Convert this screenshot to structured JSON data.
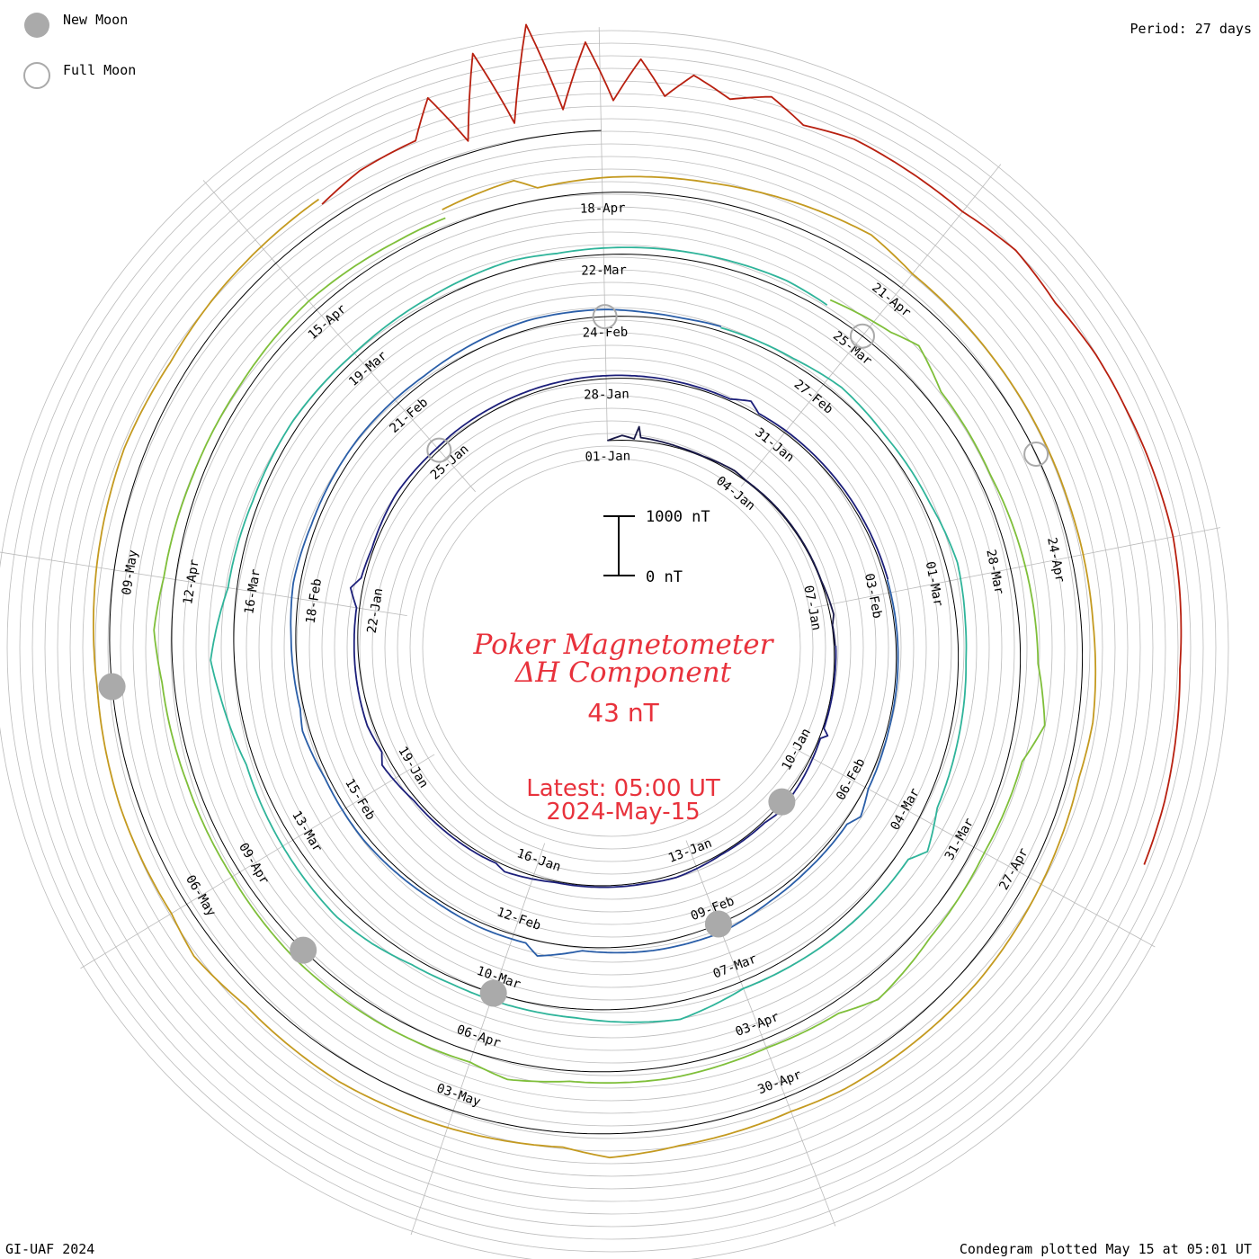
{
  "legend": {
    "new_moon_label": "New Moon",
    "full_moon_label": "Full Moon"
  },
  "period_label": "Period: 27 days",
  "footer_left": "GI-UAF 2024",
  "footer_right": "Condegram plotted May 15 at 05:01 UT",
  "colors": {
    "title": "#e8323c",
    "moon_new": "#aaaaaa",
    "moon_full_stroke": "#aaaaaa",
    "grid": "#bbbbbb",
    "baseline": "#000000"
  },
  "chart_data": {
    "type": "line",
    "title": "Poker Magnetometer",
    "subtitle": "ΔH Component",
    "current_value": "43 nT",
    "latest_label": "Latest: 05:00 UT",
    "latest_date": "2024-May-15",
    "scale_bar": {
      "top_label": "1000 nT",
      "bottom_label": "0 nT",
      "top_value": 1000,
      "bottom_value": 0
    },
    "period_days": 27,
    "start_date": "2024-01-01",
    "end_date": "2024-05-15",
    "date_labels": [
      "01-Jan",
      "04-Jan",
      "07-Jan",
      "10-Jan",
      "13-Jan",
      "16-Jan",
      "19-Jan",
      "22-Jan",
      "25-Jan",
      "28-Jan",
      "31-Jan",
      "03-Feb",
      "06-Feb",
      "09-Feb",
      "12-Feb",
      "15-Feb",
      "18-Feb",
      "21-Feb",
      "24-Feb",
      "27-Feb",
      "01-Mar",
      "04-Mar",
      "07-Mar",
      "10-Mar",
      "13-Mar",
      "16-Mar",
      "19-Mar",
      "22-Mar",
      "25-Mar",
      "28-Mar",
      "31-Mar",
      "03-Apr",
      "06-Apr",
      "09-Apr",
      "12-Apr",
      "15-Apr",
      "18-Apr",
      "21-Apr",
      "24-Apr",
      "27-Apr",
      "30-Apr",
      "03-May",
      "06-May",
      "09-May"
    ],
    "new_moons": [
      "2024-01-11",
      "2024-02-09",
      "2024-03-10",
      "2024-04-08",
      "2024-05-08"
    ],
    "full_moons": [
      "2024-01-25",
      "2024-02-24",
      "2024-03-25",
      "2024-04-23"
    ],
    "series": [
      {
        "color": "#1a1a4a",
        "points": [
          [
            0,
            0
          ],
          [
            0.3,
            80
          ],
          [
            0.55,
            30
          ],
          [
            0.62,
            240
          ],
          [
            0.68,
            60
          ],
          [
            1.5,
            20
          ],
          [
            2.0,
            10
          ],
          [
            2.7,
            40
          ],
          [
            3.0,
            10
          ],
          [
            4.0,
            15
          ],
          [
            5.5,
            10
          ],
          [
            6.2,
            60
          ],
          [
            6.4,
            10
          ],
          [
            6.8,
            20
          ]
        ]
      },
      {
        "color": "#1c1f7a",
        "points": [
          [
            6.8,
            30
          ],
          [
            7.5,
            20
          ],
          [
            8.4,
            20
          ],
          [
            8.5,
            120
          ],
          [
            8.6,
            20
          ],
          [
            9.5,
            60
          ],
          [
            10.2,
            80
          ],
          [
            10.5,
            30
          ],
          [
            11.5,
            20
          ],
          [
            12.4,
            60
          ],
          [
            13.0,
            30
          ],
          [
            14.6,
            20
          ],
          [
            15.5,
            100
          ],
          [
            15.7,
            30
          ],
          [
            16.0,
            40
          ],
          [
            17.5,
            50
          ],
          [
            18.3,
            150
          ],
          [
            18.5,
            50
          ],
          [
            19.0,
            100
          ],
          [
            20.5,
            60
          ],
          [
            21.0,
            50
          ],
          [
            21.3,
            200
          ],
          [
            21.5,
            60
          ],
          [
            22.0,
            30
          ],
          [
            23.0,
            80
          ],
          [
            24.0,
            50
          ],
          [
            24.4,
            60
          ],
          [
            26.0,
            60
          ],
          [
            27.0,
            50
          ],
          [
            28.0,
            40
          ],
          [
            29.0,
            30
          ],
          [
            29.3,
            150
          ],
          [
            29.5,
            30
          ],
          [
            30.0,
            40
          ],
          [
            31.0,
            40
          ],
          [
            32.8,
            40
          ]
        ]
      },
      {
        "color": "#2a5ea8",
        "points": [
          [
            32.8,
            30
          ],
          [
            33.5,
            30
          ],
          [
            34.5,
            30
          ],
          [
            35.1,
            30
          ],
          [
            36.0,
            60
          ],
          [
            36.4,
            180
          ],
          [
            36.6,
            60
          ],
          [
            37.5,
            60
          ],
          [
            38.2,
            80
          ],
          [
            39.0,
            150
          ],
          [
            40.0,
            120
          ],
          [
            41.0,
            60
          ],
          [
            41.6,
            250
          ],
          [
            41.8,
            80
          ],
          [
            42.5,
            80
          ],
          [
            43.2,
            50
          ],
          [
            44.5,
            80
          ],
          [
            45.5,
            60
          ],
          [
            46.2,
            120
          ],
          [
            46.5,
            60
          ],
          [
            47.5,
            80
          ],
          [
            48.2,
            120
          ],
          [
            49.0,
            80
          ],
          [
            50.3,
            100
          ],
          [
            51.5,
            80
          ],
          [
            53.0,
            150
          ],
          [
            54.0,
            120
          ],
          [
            54.5,
            80
          ],
          [
            55.0,
            60
          ],
          [
            55.5,
            80
          ]
        ]
      },
      {
        "color": "#2fb49a",
        "points": [
          [
            55.5,
            60
          ],
          [
            56.5,
            80
          ],
          [
            57.2,
            150
          ],
          [
            58.0,
            100
          ],
          [
            59.0,
            120
          ],
          [
            59.8,
            200
          ],
          [
            60.5,
            150
          ],
          [
            61.0,
            130
          ],
          [
            62.0,
            160
          ],
          [
            62.8,
            200
          ],
          [
            63.3,
            400
          ],
          [
            63.5,
            200
          ],
          [
            64.5,
            180
          ],
          [
            65.2,
            150
          ],
          [
            66.0,
            120
          ],
          [
            66.8,
            300
          ],
          [
            67.2,
            250
          ],
          [
            68.0,
            150
          ],
          [
            69.5,
            100
          ],
          [
            70.0,
            120
          ],
          [
            70.5,
            200
          ],
          [
            71.0,
            250
          ],
          [
            72.0,
            200
          ],
          [
            73.0,
            150
          ],
          [
            73.8,
            300
          ],
          [
            74.2,
            400
          ],
          [
            75.0,
            150
          ],
          [
            76.0,
            100
          ],
          [
            77.0,
            120
          ],
          [
            78.0,
            80
          ],
          [
            79.0,
            100
          ],
          [
            80.0,
            150
          ],
          [
            80.5,
            100
          ],
          [
            81.5,
            120
          ],
          [
            83.0,
            150
          ],
          [
            83.5,
            100
          ]
        ]
      },
      {
        "color": "#7fbf3a",
        "points": [
          [
            83.5,
            200
          ],
          [
            84.2,
            350
          ],
          [
            84.5,
            500
          ],
          [
            85.0,
            250
          ],
          [
            86.0,
            200
          ],
          [
            87.0,
            250
          ],
          [
            88.0,
            300
          ],
          [
            88.6,
            500
          ],
          [
            89.0,
            250
          ],
          [
            90.0,
            200
          ],
          [
            91.0,
            250
          ],
          [
            91.8,
            400
          ],
          [
            92.2,
            200
          ],
          [
            93.0,
            150
          ],
          [
            94.0,
            200
          ],
          [
            95.0,
            180
          ],
          [
            95.6,
            300
          ],
          [
            96.0,
            180
          ],
          [
            97.0,
            200
          ],
          [
            98.0,
            200
          ],
          [
            99.0,
            150
          ],
          [
            100.0,
            150
          ],
          [
            101.0,
            200
          ],
          [
            101.5,
            300
          ],
          [
            102.0,
            200
          ],
          [
            103.0,
            150
          ],
          [
            104.0,
            150
          ],
          [
            105.0,
            200
          ],
          [
            106.0,
            150
          ],
          [
            106.5,
            150
          ]
        ]
      },
      {
        "color": "#c49a20",
        "points": [
          [
            106.5,
            300
          ],
          [
            107.2,
            400
          ],
          [
            107.4,
            200
          ],
          [
            108.0,
            250
          ],
          [
            109.0,
            300
          ],
          [
            110.5,
            450
          ],
          [
            111.0,
            300
          ],
          [
            112.0,
            250
          ],
          [
            113.5,
            200
          ],
          [
            114.6,
            200
          ],
          [
            115.5,
            250
          ],
          [
            116.0,
            200
          ],
          [
            117.0,
            250
          ],
          [
            118.0,
            300
          ],
          [
            119.5,
            300
          ],
          [
            120.0,
            250
          ],
          [
            121.0,
            300
          ],
          [
            121.6,
            400
          ],
          [
            122.0,
            250
          ],
          [
            123.0,
            300
          ],
          [
            124.0,
            350
          ],
          [
            125.0,
            300
          ],
          [
            125.6,
            400
          ],
          [
            126.0,
            300
          ],
          [
            127.0,
            300
          ],
          [
            128.0,
            250
          ],
          [
            129.0,
            300
          ],
          [
            130.0,
            350
          ],
          [
            130.8,
            300
          ],
          [
            131.5,
            350
          ],
          [
            132.6,
            400
          ]
        ]
      },
      {
        "color": "#b82010",
        "points": [
          [
            132.6,
            300
          ],
          [
            133.0,
            450
          ],
          [
            133.5,
            500
          ],
          [
            133.7,
            1100
          ],
          [
            133.9,
            200
          ],
          [
            134.1,
            1600
          ],
          [
            134.3,
            300
          ],
          [
            134.5,
            1900
          ],
          [
            134.7,
            400
          ],
          [
            134.9,
            1500
          ],
          [
            135.1,
            500
          ],
          [
            135.3,
            1200
          ],
          [
            135.5,
            600
          ],
          [
            135.7,
            1000
          ],
          [
            136.0,
            700
          ],
          [
            136.3,
            900
          ],
          [
            136.6,
            600
          ],
          [
            137.0,
            700
          ],
          [
            137.5,
            650
          ],
          [
            138.0,
            600
          ],
          [
            138.5,
            700
          ],
          [
            139.0,
            600
          ],
          [
            139.5,
            650
          ],
          [
            140.0,
            650
          ],
          [
            141.0,
            700
          ],
          [
            142.0,
            600
          ],
          [
            143.0,
            650
          ],
          [
            143.5,
            650
          ]
        ]
      }
    ]
  }
}
